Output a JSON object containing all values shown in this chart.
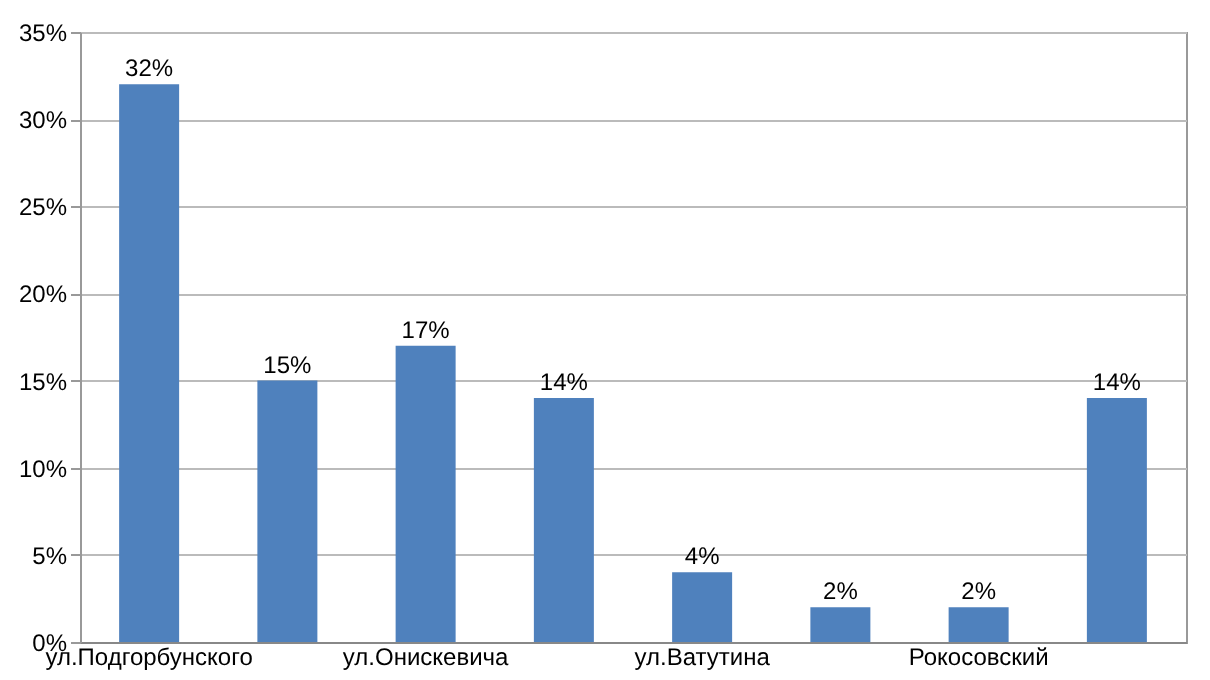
{
  "chart_data": {
    "type": "bar",
    "categories": [
      "ул.Подгорбунского",
      null,
      "ул.Онискевича",
      null,
      "ул.Ватутина",
      null,
      "Рокосовский",
      null
    ],
    "values": [
      32,
      15,
      17,
      14,
      4,
      2,
      2,
      14
    ],
    "value_labels": [
      "32%",
      "15%",
      "17%",
      "14%",
      "4%",
      "2%",
      "2%",
      "14%"
    ],
    "color": "#4f81bd",
    "ylim": [
      0,
      35
    ],
    "yticks": [
      {
        "value": 0,
        "label": "0%"
      },
      {
        "value": 5,
        "label": "5%"
      },
      {
        "value": 10,
        "label": "10%"
      },
      {
        "value": 15,
        "label": "15%"
      },
      {
        "value": 20,
        "label": "20%"
      },
      {
        "value": 25,
        "label": "25%"
      },
      {
        "value": 30,
        "label": "30%"
      },
      {
        "value": 35,
        "label": "35%"
      }
    ],
    "grid": "y"
  }
}
